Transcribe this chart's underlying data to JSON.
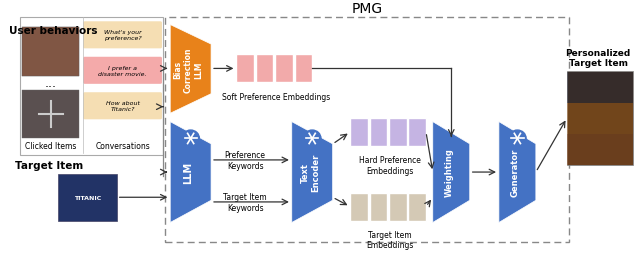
{
  "title": "PMG",
  "title_fontsize": 10,
  "colors": {
    "orange": "#E8821A",
    "blue": "#4472C4",
    "soft_emb": "#F2AAAA",
    "hard_emb": "#C5B4E3",
    "target_emb": "#D4C9B5",
    "white": "#FFFFFF",
    "arrow": "#333333",
    "gray": "#888888",
    "left_box_border": "#AAAAAA",
    "dashed_border": "#888888"
  },
  "labels": {
    "bias_llm": "Bias\nCorrection\nLLM",
    "llm": "LLM",
    "text_encoder": "Text\nEncoder",
    "weighting": "Weighting",
    "generator": "Generator",
    "soft_pref": "Soft Preference Embeddings",
    "hard_pref": "Hard Preference\nEmbeddings",
    "target_emb_lbl": "Target Item\nEmbeddings",
    "pref_kw": "Preference\nKeywords",
    "target_kw": "Target Item\nKeywords",
    "user_behaviors": "User behaviors",
    "clicked_items": "Clicked Items",
    "conversations": "Conversations",
    "target_item": "Target Item",
    "personalized": "Personalized\nTarget Item"
  },
  "chat_bubbles": [
    {
      "text": "What's your\npreference?",
      "color": "#F5DEB3"
    },
    {
      "text": "I prefer a\ndisaster movie.",
      "color": "#F4AAAA"
    },
    {
      "text": "How about\nTitanic?",
      "color": "#F5DEB3"
    }
  ]
}
